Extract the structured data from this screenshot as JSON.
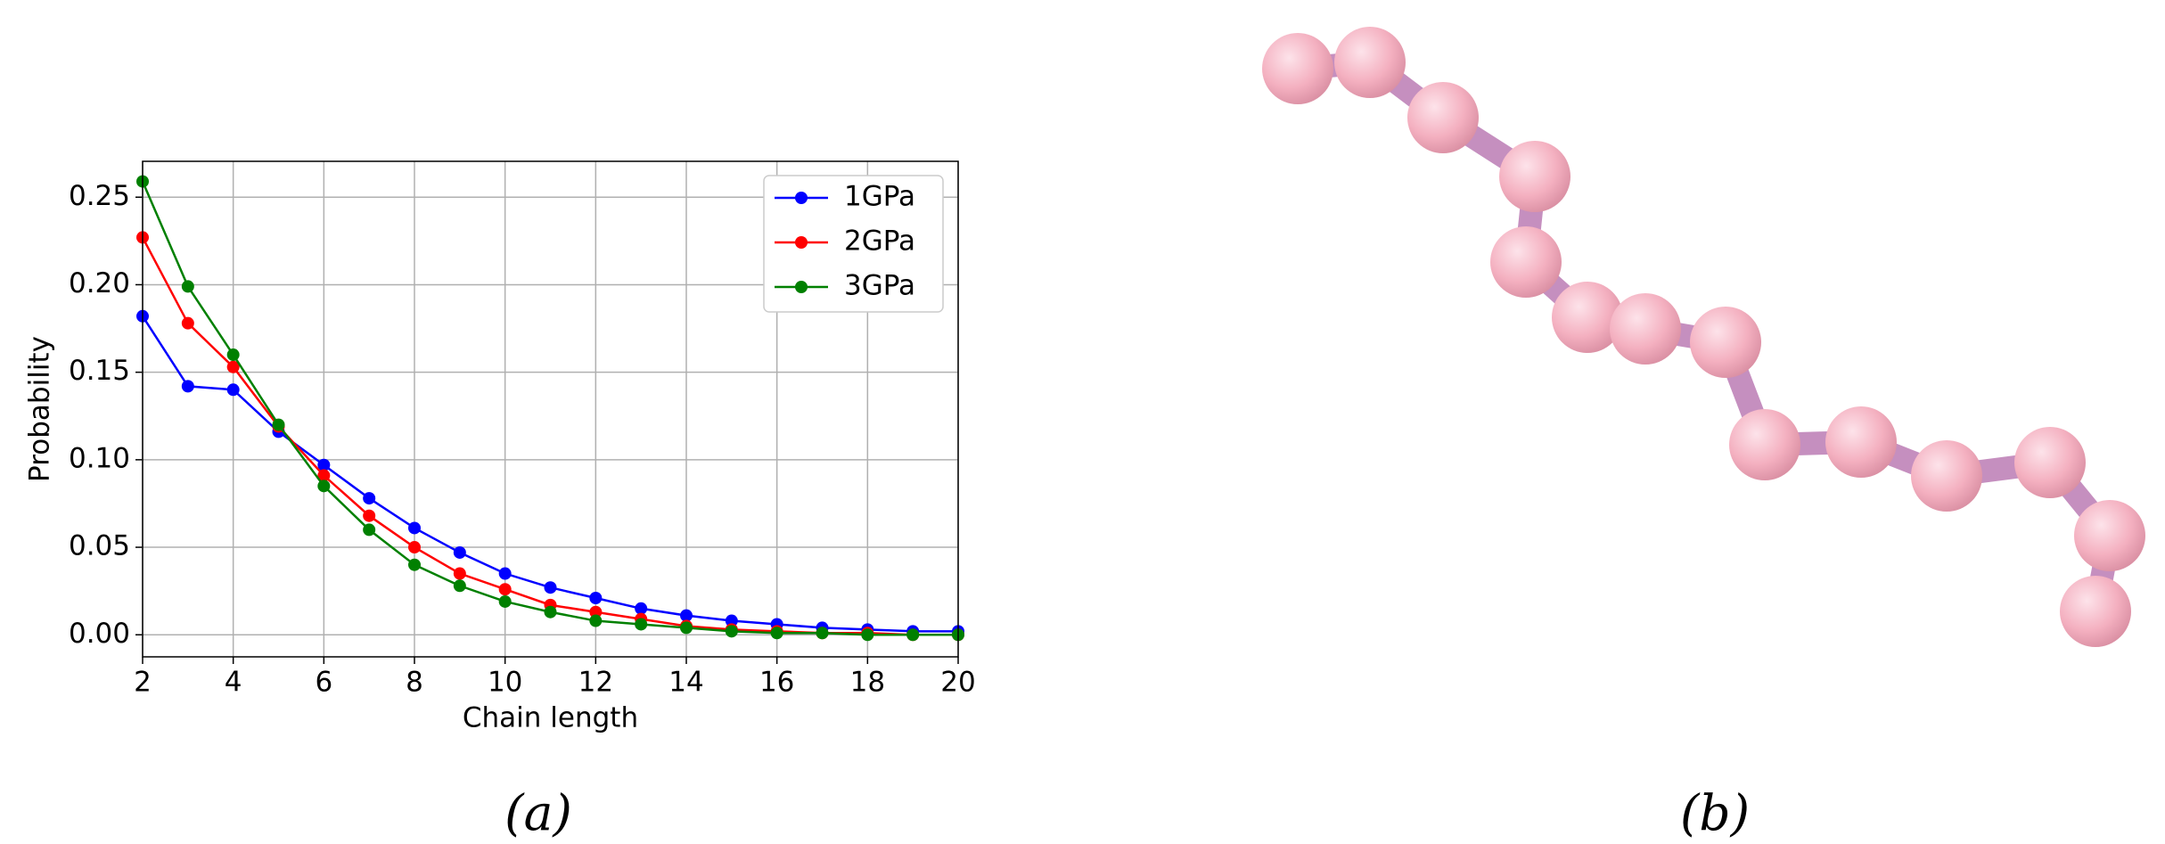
{
  "chart_data": {
    "type": "line",
    "xlabel": "Chain length",
    "ylabel": "Probability",
    "x": [
      2,
      3,
      4,
      5,
      6,
      7,
      8,
      9,
      10,
      11,
      12,
      13,
      14,
      15,
      16,
      17,
      18,
      19,
      20
    ],
    "series": [
      {
        "name": "1GPa",
        "color": "#0000ff",
        "values": [
          0.182,
          0.142,
          0.14,
          0.116,
          0.097,
          0.078,
          0.061,
          0.047,
          0.035,
          0.027,
          0.021,
          0.015,
          0.011,
          0.008,
          0.006,
          0.004,
          0.003,
          0.002,
          0.002
        ]
      },
      {
        "name": "2GPa",
        "color": "#ff0000",
        "values": [
          0.227,
          0.178,
          0.153,
          0.119,
          0.091,
          0.068,
          0.05,
          0.035,
          0.026,
          0.017,
          0.013,
          0.009,
          0.005,
          0.003,
          0.002,
          0.001,
          0.001,
          0.0,
          0.0
        ]
      },
      {
        "name": "3GPa",
        "color": "#008000",
        "values": [
          0.259,
          0.199,
          0.16,
          0.12,
          0.085,
          0.06,
          0.04,
          0.028,
          0.019,
          0.013,
          0.008,
          0.006,
          0.004,
          0.002,
          0.001,
          0.001,
          0.0,
          0.0,
          0.0
        ]
      }
    ],
    "xlim": [
      2,
      20
    ],
    "ylim": [
      -0.0126,
      0.2705
    ],
    "xticks": [
      2,
      4,
      6,
      8,
      10,
      12,
      14,
      16,
      18,
      20
    ],
    "yticks": [
      {
        "value": 0,
        "label": "0.00"
      },
      {
        "value": 0.05,
        "label": "0.05"
      },
      {
        "value": 0.1,
        "label": "0.10"
      },
      {
        "value": 0.15,
        "label": "0.15"
      },
      {
        "value": 0.2,
        "label": "0.20"
      },
      {
        "value": 0.25,
        "label": "0.25"
      }
    ],
    "grid": true,
    "legend": "upper right"
  },
  "captions": [
    "(a)",
    "(b)"
  ]
}
